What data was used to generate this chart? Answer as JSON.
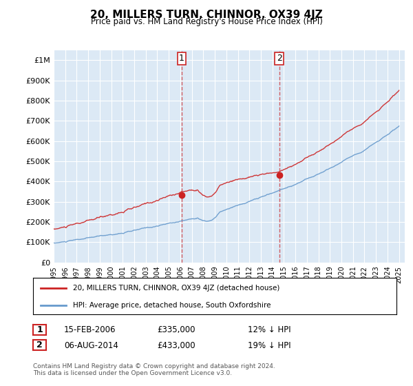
{
  "title": "20, MILLERS TURN, CHINNOR, OX39 4JZ",
  "subtitle": "Price paid vs. HM Land Registry's House Price Index (HPI)",
  "hpi_color": "#6699cc",
  "price_color": "#cc2222",
  "dashed_color": "#cc2222",
  "background_color": "#dce9f5",
  "plot_bg": "#dce9f5",
  "ylim": [
    0,
    1050000
  ],
  "yticks": [
    0,
    100000,
    200000,
    300000,
    400000,
    500000,
    600000,
    700000,
    800000,
    900000,
    1000000
  ],
  "ytick_labels": [
    "£0",
    "£100K",
    "£200K",
    "£300K",
    "£400K",
    "£500K",
    "£600K",
    "£700K",
    "£800K",
    "£900K",
    "£1M"
  ],
  "sale1_date": 2006.12,
  "sale1_price": 335000,
  "sale2_date": 2014.59,
  "sale2_price": 433000,
  "legend1": "20, MILLERS TURN, CHINNOR, OX39 4JZ (detached house)",
  "legend2": "HPI: Average price, detached house, South Oxfordshire",
  "table_rows": [
    {
      "num": "1",
      "date": "15-FEB-2006",
      "price": "£335,000",
      "info": "12% ↓ HPI"
    },
    {
      "num": "2",
      "date": "06-AUG-2014",
      "price": "£433,000",
      "info": "19% ↓ HPI"
    }
  ],
  "footer": "Contains HM Land Registry data © Crown copyright and database right 2024.\nThis data is licensed under the Open Government Licence v3.0.",
  "xmin": 1995.0,
  "xmax": 2025.5
}
